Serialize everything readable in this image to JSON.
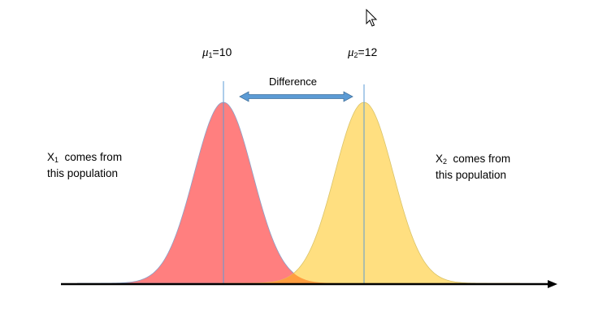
{
  "diagram": {
    "mu1": {
      "symbol": "μ",
      "subscript": "1",
      "value": "=10"
    },
    "mu2": {
      "symbol": "μ",
      "subscript": "2",
      "value": "=12"
    },
    "difference_label": "Difference",
    "pop1": {
      "var": "X",
      "subscript": "1",
      "line1": "comes from",
      "line2": "this population"
    },
    "pop2": {
      "var": "X",
      "subscript": "2",
      "line1": "comes from",
      "line2": "this population"
    }
  },
  "colors": {
    "population_1_fill": "#ff7f7f",
    "population_2_fill": "#ffdf80",
    "overlap_fill": "#ff9e40",
    "mean_line": "#5b9bd5",
    "difference_arrow": "#5b9bd5",
    "axis": "#000000"
  },
  "icons": {
    "cursor": "mouse-pointer-icon"
  }
}
